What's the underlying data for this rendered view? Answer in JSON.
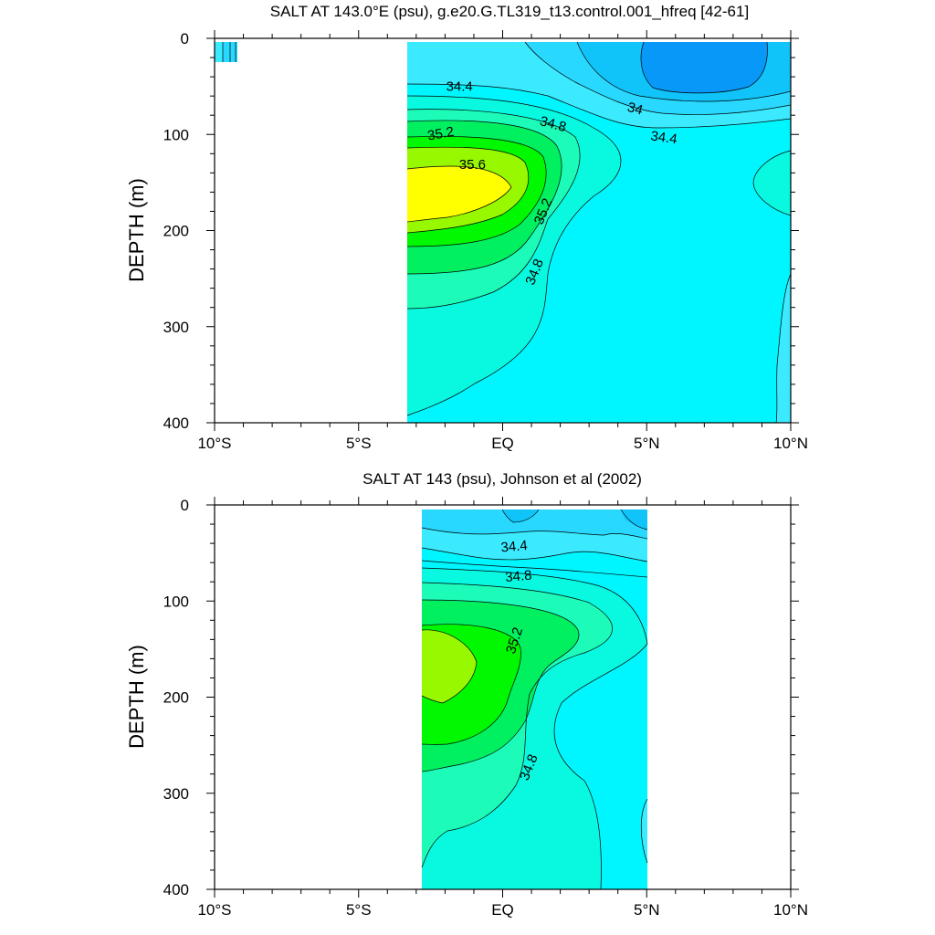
{
  "colors": {
    "lt_34_0": "#0898f8",
    "c_34_0": "#10c4fa",
    "c_34_2": "#28d8ff",
    "c_34_4": "#3ceaff",
    "c_34_6": "#00f6ff",
    "c_34_8": "#08f8e0",
    "c_35_0": "#1cfcb8",
    "c_35_2": "#00f060",
    "c_35_4": "#00f800",
    "c_35_6": "#98f800",
    "c_35_8": "#ffff00",
    "background": "#ffffff",
    "contour_line": "#000000"
  },
  "chart_data": [
    {
      "type": "contour",
      "title": "SALT AT 143.0°E (psu), g.e20.G.TL319_t13.control.001_hfreq [42-61]",
      "xlabel": "",
      "ylabel": "DEPTH (m)",
      "x_ticks": [
        {
          "lat": -10,
          "label": "10°S"
        },
        {
          "lat": -5,
          "label": "5°S"
        },
        {
          "lat": 0,
          "label": "EQ"
        },
        {
          "lat": 5,
          "label": "5°N"
        },
        {
          "lat": 10,
          "label": "10°N"
        }
      ],
      "y_ticks": [
        {
          "depth": 0,
          "label": "0"
        },
        {
          "depth": 100,
          "label": "100"
        },
        {
          "depth": 200,
          "label": "200"
        },
        {
          "depth": 300,
          "label": "300"
        },
        {
          "depth": 400,
          "label": "400"
        }
      ],
      "xlim": [
        -10,
        10
      ],
      "ylim": [
        400,
        0
      ],
      "units": "psu",
      "contour_interval": 0.2,
      "data_extent": {
        "lat": [
          -3.3,
          10
        ],
        "depth": [
          5,
          400
        ]
      },
      "contour_labels": [
        {
          "text": "34.4",
          "lat": -1.5,
          "depth": 50,
          "angle": 0
        },
        {
          "text": "34",
          "lat": 4.6,
          "depth": 73,
          "angle": 15
        },
        {
          "text": "34.4",
          "lat": 5.6,
          "depth": 103,
          "angle": 8
        },
        {
          "text": "35.2",
          "lat": -2.15,
          "depth": 99,
          "angle": -10
        },
        {
          "text": "34.8",
          "lat": 1.75,
          "depth": 89,
          "angle": 15
        },
        {
          "text": "35.6",
          "lat": -1.05,
          "depth": 131,
          "angle": 0
        },
        {
          "text": "35.2",
          "lat": 1.4,
          "depth": 180,
          "angle": -68
        },
        {
          "text": "34.8",
          "lat": 1.1,
          "depth": 243,
          "angle": -68
        }
      ]
    },
    {
      "type": "contour",
      "title": "SALT AT 143 (psu), Johnson et al (2002)",
      "xlabel": "",
      "ylabel": "DEPTH (m)",
      "x_ticks": [
        {
          "lat": -10,
          "label": "10°S"
        },
        {
          "lat": -5,
          "label": "5°S"
        },
        {
          "lat": 0,
          "label": "EQ"
        },
        {
          "lat": 5,
          "label": "5°N"
        },
        {
          "lat": 10,
          "label": "10°N"
        }
      ],
      "y_ticks": [
        {
          "depth": 0,
          "label": "0"
        },
        {
          "depth": 100,
          "label": "100"
        },
        {
          "depth": 200,
          "label": "200"
        },
        {
          "depth": 300,
          "label": "300"
        },
        {
          "depth": 400,
          "label": "400"
        }
      ],
      "xlim": [
        -10,
        10
      ],
      "ylim": [
        400,
        0
      ],
      "units": "psu",
      "contour_interval": 0.2,
      "data_extent": {
        "lat": [
          -2.85,
          5
        ],
        "depth": [
          5,
          400
        ]
      },
      "contour_labels": [
        {
          "text": "34.4",
          "lat": 0.4,
          "depth": 43,
          "angle": -5
        },
        {
          "text": "34.8",
          "lat": 0.55,
          "depth": 74,
          "angle": -5
        },
        {
          "text": "35.2",
          "lat": 0.4,
          "depth": 141,
          "angle": -72
        },
        {
          "text": "34.8",
          "lat": 0.9,
          "depth": 273,
          "angle": -68
        }
      ]
    }
  ]
}
